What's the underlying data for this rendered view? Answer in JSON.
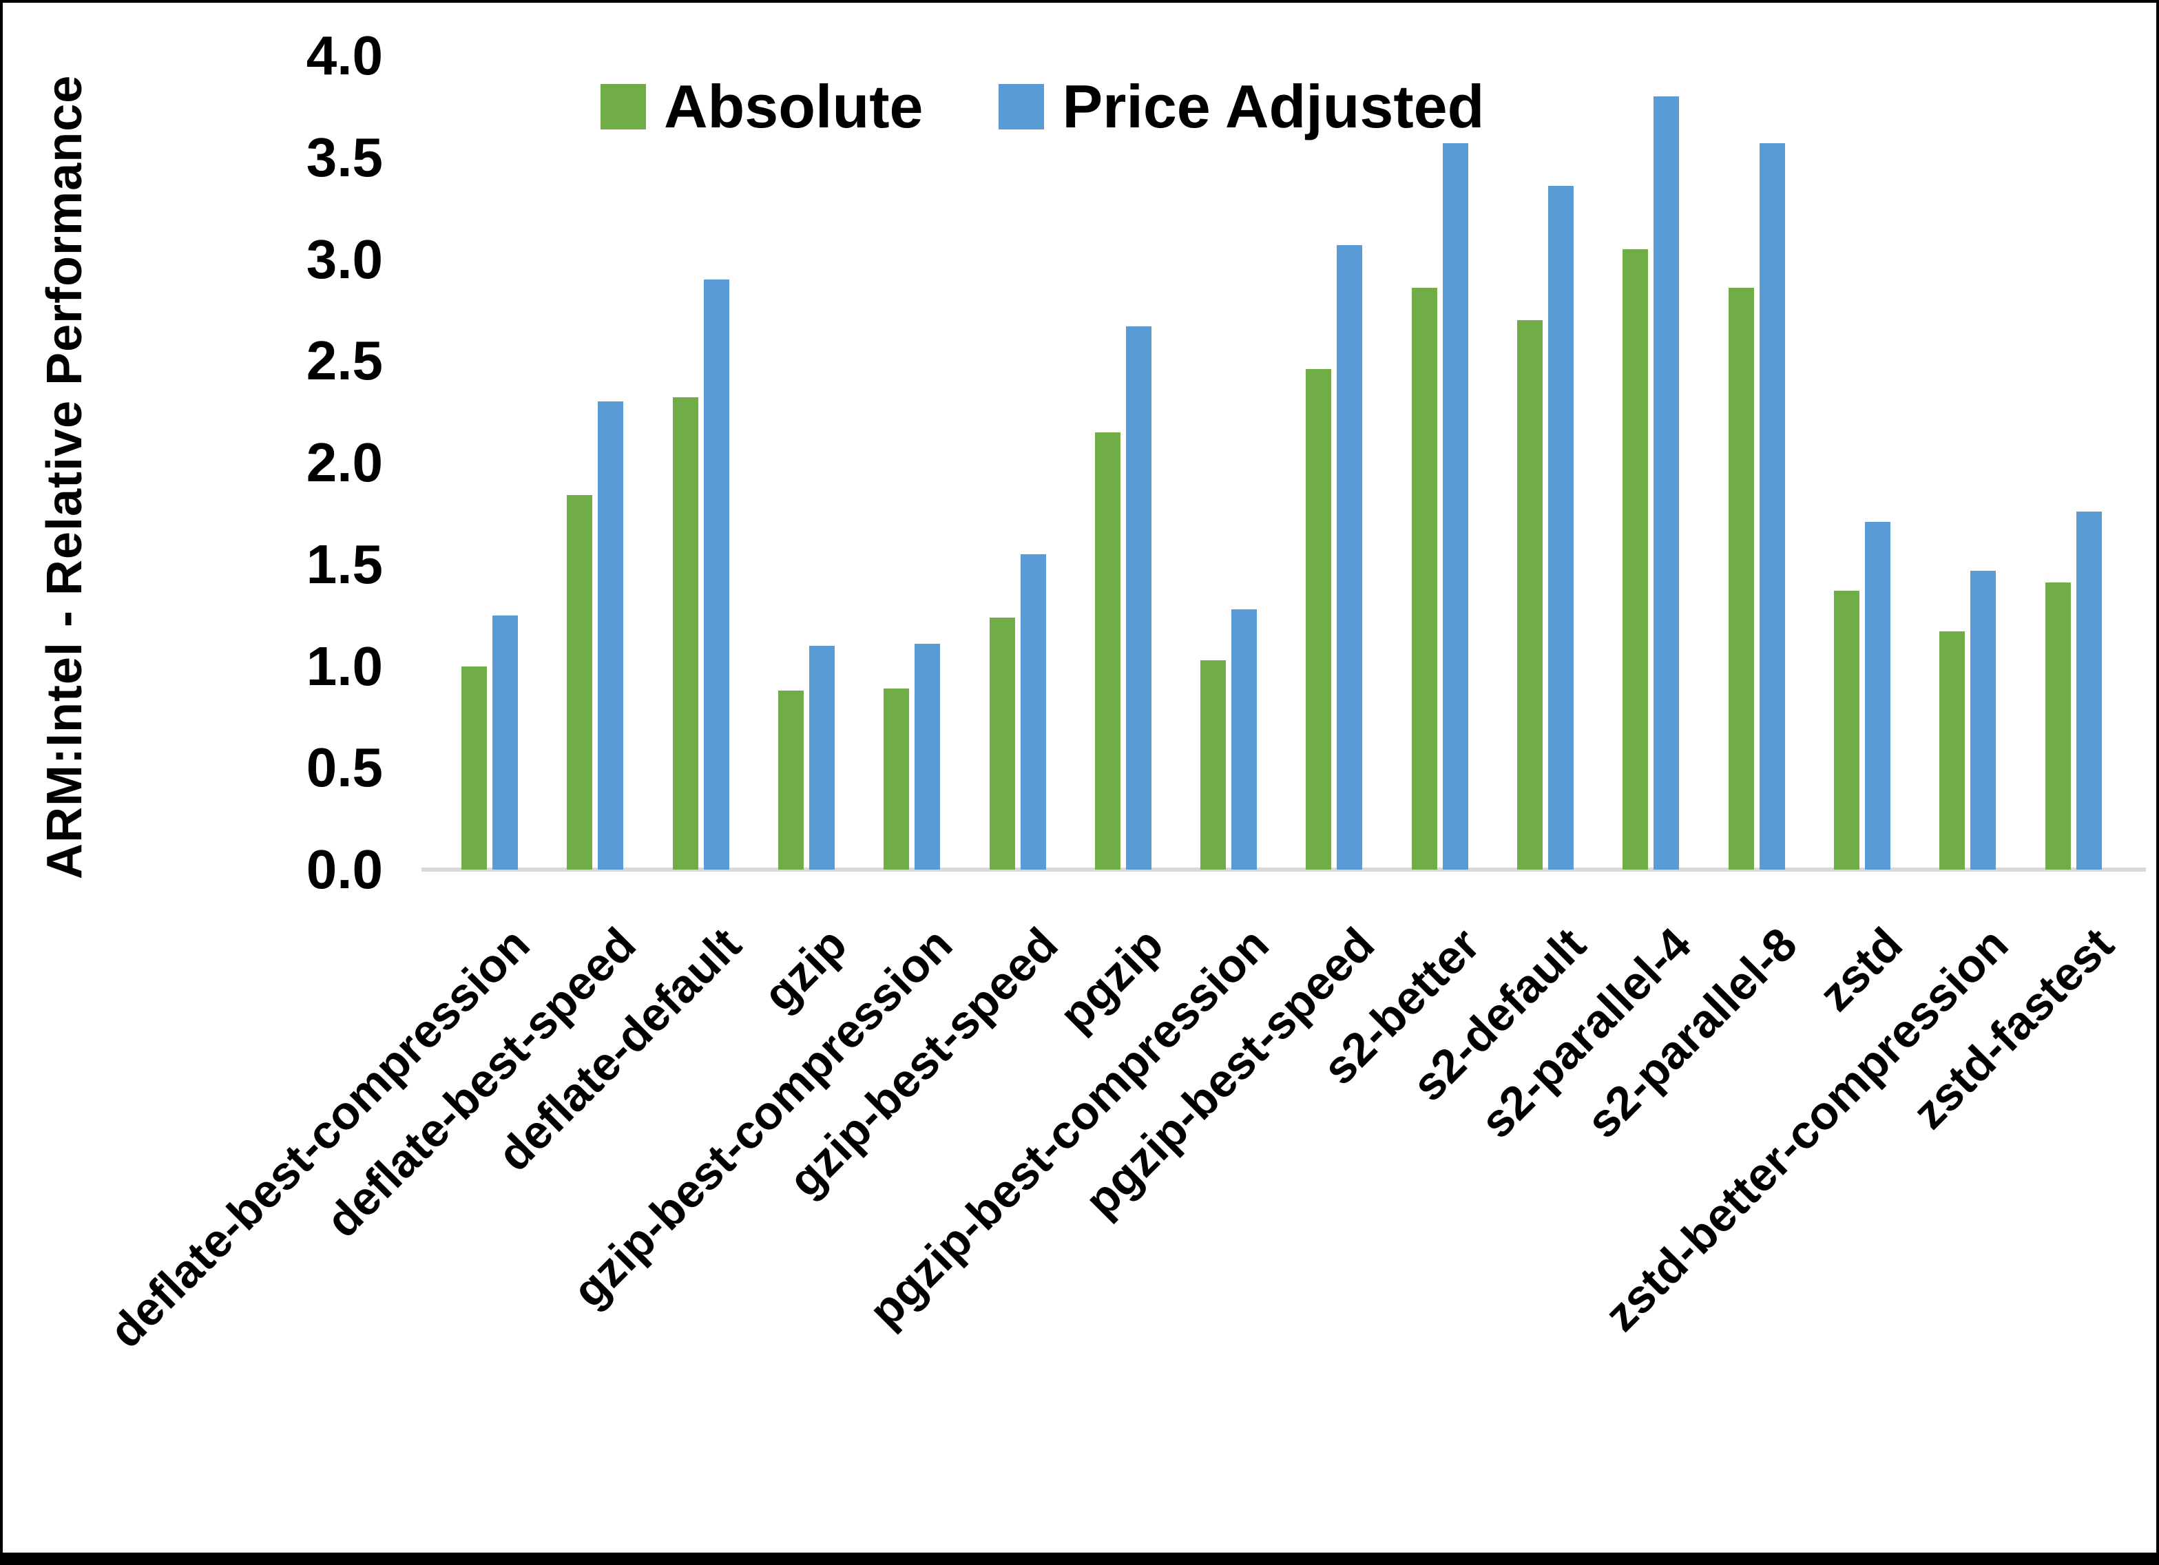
{
  "chart_data": {
    "type": "bar",
    "title": "",
    "xlabel": "",
    "ylabel": "ARM:Intel - Relative Performance",
    "ylim": [
      0.0,
      4.0
    ],
    "ytick_step": 0.5,
    "ytick_format_decimals": 1,
    "grid": false,
    "legend_position": "top-center",
    "axis_line_color": "#d9d9d9",
    "background_color": "#ffffff",
    "text_color": "#000000",
    "categories": [
      "deflate-best-compression",
      "deflate-best-speed",
      "deflate-default",
      "gzip",
      "gzip-best-compression",
      "gzip-best-speed",
      "pgzip",
      "pgzip-best-compression",
      "pgzip-best-speed",
      "s2-better",
      "s2-default",
      "s2-parallel-4",
      "s2-parallel-8",
      "zstd",
      "zstd-better-compression",
      "zstd-fastest"
    ],
    "series": [
      {
        "name": "Absolute",
        "color": "#70AD47",
        "values": [
          1.0,
          1.84,
          2.32,
          0.88,
          0.89,
          1.24,
          2.15,
          1.03,
          2.46,
          2.86,
          2.7,
          3.05,
          2.86,
          1.37,
          1.17,
          1.41
        ]
      },
      {
        "name": "Price Adjusted",
        "color": "#5B9BD5",
        "values": [
          1.25,
          2.3,
          2.9,
          1.1,
          1.11,
          1.55,
          2.67,
          1.28,
          3.07,
          3.57,
          3.36,
          3.8,
          3.57,
          1.71,
          1.47,
          1.76
        ]
      }
    ]
  }
}
